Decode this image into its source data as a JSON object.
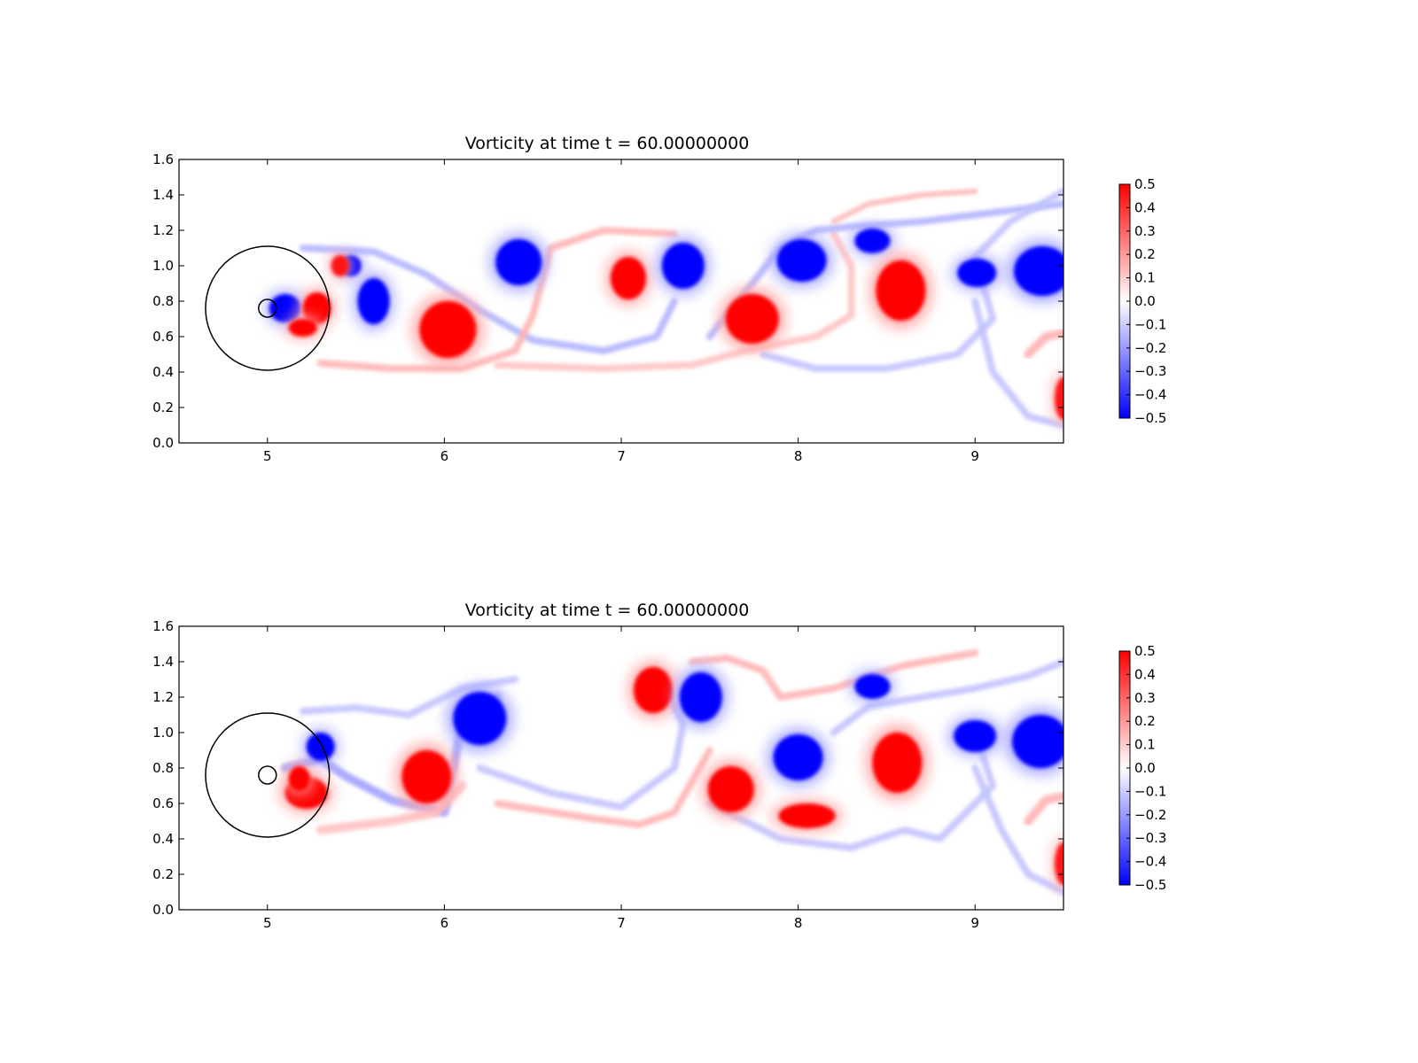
{
  "chart_data": [
    {
      "type": "heatmap",
      "title": "Vorticity at time t =    60.00000000",
      "xlabel": "",
      "ylabel": "",
      "xlim": [
        4.5,
        9.5
      ],
      "ylim": [
        0.0,
        1.6
      ],
      "x_ticks": [
        5,
        6,
        7,
        8,
        9
      ],
      "y_ticks": [
        0.0,
        0.2,
        0.4,
        0.6,
        0.8,
        1.0,
        1.2,
        1.4,
        1.6
      ],
      "grid": false,
      "colormap": "bwr",
      "colors": {
        "negative": "#0000ff",
        "zero": "#ffffff",
        "positive": "#ff0000"
      },
      "colorbar": {
        "range": [
          -0.5,
          0.5
        ],
        "ticks": [
          0.5,
          0.4,
          0.3,
          0.2,
          0.1,
          0.0,
          -0.1,
          -0.2,
          -0.3,
          -0.4,
          -0.5
        ],
        "tick_labels": [
          "0.5",
          "0.4",
          "0.3",
          "0.2",
          "0.1",
          "0.0",
          "−0.1",
          "−0.2",
          "−0.3",
          "−0.4",
          "−0.5"
        ]
      },
      "circles": [
        {
          "cx": 5.0,
          "cy": 0.76,
          "r": 0.35
        },
        {
          "cx": 5.0,
          "cy": 0.76,
          "r": 0.05
        }
      ],
      "vortices": [
        {
          "x": 6.02,
          "y": 0.64,
          "rx": 0.16,
          "ry": 0.16,
          "value": 0.5
        },
        {
          "x": 6.42,
          "y": 1.02,
          "rx": 0.13,
          "ry": 0.13,
          "value": -0.5
        },
        {
          "x": 7.04,
          "y": 0.93,
          "rx": 0.1,
          "ry": 0.12,
          "value": 0.5
        },
        {
          "x": 7.35,
          "y": 1.0,
          "rx": 0.12,
          "ry": 0.13,
          "value": -0.5
        },
        {
          "x": 7.74,
          "y": 0.7,
          "rx": 0.15,
          "ry": 0.14,
          "value": 0.5
        },
        {
          "x": 8.02,
          "y": 1.03,
          "rx": 0.14,
          "ry": 0.12,
          "value": -0.5
        },
        {
          "x": 8.42,
          "y": 1.14,
          "rx": 0.1,
          "ry": 0.07,
          "value": -0.5
        },
        {
          "x": 8.58,
          "y": 0.86,
          "rx": 0.14,
          "ry": 0.17,
          "value": 0.5
        },
        {
          "x": 9.01,
          "y": 0.96,
          "rx": 0.11,
          "ry": 0.08,
          "value": -0.5
        },
        {
          "x": 9.38,
          "y": 0.97,
          "rx": 0.16,
          "ry": 0.14,
          "value": -0.5
        },
        {
          "x": 5.1,
          "y": 0.76,
          "rx": 0.09,
          "ry": 0.08,
          "value": -0.5
        },
        {
          "x": 5.6,
          "y": 0.8,
          "rx": 0.09,
          "ry": 0.13,
          "value": -0.5
        },
        {
          "x": 5.47,
          "y": 1.0,
          "rx": 0.06,
          "ry": 0.06,
          "value": -0.5
        },
        {
          "x": 5.28,
          "y": 0.76,
          "rx": 0.08,
          "ry": 0.09,
          "value": 0.5
        },
        {
          "x": 5.2,
          "y": 0.65,
          "rx": 0.08,
          "ry": 0.05,
          "value": 0.5
        },
        {
          "x": 5.41,
          "y": 1.0,
          "rx": 0.05,
          "ry": 0.06,
          "value": 0.45
        },
        {
          "x": 9.5,
          "y": 0.25,
          "rx": 0.05,
          "ry": 0.12,
          "value": 0.45
        }
      ],
      "filaments": [
        {
          "points": [
            [
              5.2,
              1.1
            ],
            [
              5.6,
              1.08
            ],
            [
              5.9,
              0.95
            ],
            [
              6.2,
              0.75
            ],
            [
              6.5,
              0.58
            ],
            [
              6.9,
              0.52
            ],
            [
              7.2,
              0.6
            ],
            [
              7.3,
              0.8
            ]
          ],
          "value": -0.15,
          "width": 0.04
        },
        {
          "points": [
            [
              5.3,
              0.45
            ],
            [
              5.7,
              0.42
            ],
            [
              6.1,
              0.42
            ],
            [
              6.4,
              0.52
            ],
            [
              6.5,
              0.72
            ],
            [
              6.6,
              1.1
            ],
            [
              6.9,
              1.2
            ],
            [
              7.3,
              1.18
            ]
          ],
          "value": 0.15,
          "width": 0.04
        },
        {
          "points": [
            [
              6.3,
              0.44
            ],
            [
              6.9,
              0.42
            ],
            [
              7.4,
              0.44
            ],
            [
              7.7,
              0.52
            ],
            [
              8.1,
              0.6
            ],
            [
              8.3,
              0.72
            ],
            [
              8.3,
              1.0
            ],
            [
              8.2,
              1.18
            ]
          ],
          "value": 0.12,
          "width": 0.04
        },
        {
          "points": [
            [
              7.5,
              0.6
            ],
            [
              7.7,
              0.85
            ],
            [
              7.9,
              1.1
            ],
            [
              8.1,
              1.2
            ],
            [
              8.3,
              1.22
            ],
            [
              8.7,
              1.25
            ],
            [
              9.1,
              1.3
            ],
            [
              9.5,
              1.35
            ]
          ],
          "value": -0.15,
          "width": 0.04
        },
        {
          "points": [
            [
              7.8,
              0.5
            ],
            [
              8.1,
              0.42
            ],
            [
              8.5,
              0.42
            ],
            [
              8.9,
              0.5
            ],
            [
              9.1,
              0.7
            ],
            [
              9.0,
              1.05
            ],
            [
              9.2,
              1.25
            ],
            [
              9.5,
              1.42
            ]
          ],
          "value": -0.12,
          "width": 0.04
        },
        {
          "points": [
            [
              8.2,
              1.25
            ],
            [
              8.4,
              1.35
            ],
            [
              8.7,
              1.4
            ],
            [
              9.0,
              1.42
            ]
          ],
          "value": 0.15,
          "width": 0.03
        },
        {
          "points": [
            [
              9.0,
              0.8
            ],
            [
              9.1,
              0.4
            ],
            [
              9.3,
              0.15
            ],
            [
              9.5,
              0.1
            ]
          ],
          "value": -0.12,
          "width": 0.04
        },
        {
          "points": [
            [
              9.3,
              0.5
            ],
            [
              9.4,
              0.6
            ],
            [
              9.5,
              0.62
            ]
          ],
          "value": 0.15,
          "width": 0.05
        }
      ]
    },
    {
      "type": "heatmap",
      "title": "Vorticity at time t =    60.00000000",
      "xlabel": "",
      "ylabel": "",
      "xlim": [
        4.5,
        9.5
      ],
      "ylim": [
        0.0,
        1.6
      ],
      "x_ticks": [
        5,
        6,
        7,
        8,
        9
      ],
      "y_ticks": [
        0.0,
        0.2,
        0.4,
        0.6,
        0.8,
        1.0,
        1.2,
        1.4,
        1.6
      ],
      "grid": false,
      "colormap": "bwr",
      "colors": {
        "negative": "#0000ff",
        "zero": "#ffffff",
        "positive": "#ff0000"
      },
      "colorbar": {
        "range": [
          -0.5,
          0.5
        ],
        "ticks": [
          0.5,
          0.4,
          0.3,
          0.2,
          0.1,
          0.0,
          -0.1,
          -0.2,
          -0.3,
          -0.4,
          -0.5
        ],
        "tick_labels": [
          "0.5",
          "0.4",
          "0.3",
          "0.2",
          "0.1",
          "0.0",
          "−0.1",
          "−0.2",
          "−0.3",
          "−0.4",
          "−0.5"
        ]
      },
      "circles": [
        {
          "cx": 5.0,
          "cy": 0.76,
          "r": 0.35
        },
        {
          "cx": 5.0,
          "cy": 0.76,
          "r": 0.05
        }
      ],
      "vortices": [
        {
          "x": 5.9,
          "y": 0.75,
          "rx": 0.14,
          "ry": 0.15,
          "value": 0.5
        },
        {
          "x": 6.2,
          "y": 1.08,
          "rx": 0.15,
          "ry": 0.15,
          "value": -0.5
        },
        {
          "x": 7.18,
          "y": 1.24,
          "rx": 0.11,
          "ry": 0.13,
          "value": 0.5
        },
        {
          "x": 7.45,
          "y": 1.2,
          "rx": 0.12,
          "ry": 0.14,
          "value": -0.5
        },
        {
          "x": 7.62,
          "y": 0.68,
          "rx": 0.13,
          "ry": 0.13,
          "value": 0.5
        },
        {
          "x": 8.0,
          "y": 0.86,
          "rx": 0.14,
          "ry": 0.13,
          "value": -0.5
        },
        {
          "x": 8.05,
          "y": 0.53,
          "rx": 0.16,
          "ry": 0.07,
          "value": 0.5
        },
        {
          "x": 8.42,
          "y": 1.26,
          "rx": 0.1,
          "ry": 0.07,
          "value": -0.5
        },
        {
          "x": 8.56,
          "y": 0.83,
          "rx": 0.14,
          "ry": 0.17,
          "value": 0.5
        },
        {
          "x": 9.0,
          "y": 0.98,
          "rx": 0.12,
          "ry": 0.09,
          "value": -0.5
        },
        {
          "x": 9.37,
          "y": 0.95,
          "rx": 0.16,
          "ry": 0.15,
          "value": -0.5
        },
        {
          "x": 5.3,
          "y": 0.92,
          "rx": 0.08,
          "ry": 0.08,
          "value": -0.5
        },
        {
          "x": 5.22,
          "y": 0.66,
          "rx": 0.12,
          "ry": 0.09,
          "value": 0.5
        },
        {
          "x": 5.18,
          "y": 0.74,
          "rx": 0.06,
          "ry": 0.07,
          "value": 0.5
        },
        {
          "x": 9.5,
          "y": 0.26,
          "rx": 0.05,
          "ry": 0.12,
          "value": 0.45
        }
      ],
      "filaments": [
        {
          "points": [
            [
              5.1,
              0.8
            ],
            [
              5.3,
              0.85
            ],
            [
              5.45,
              0.75
            ],
            [
              5.7,
              0.62
            ],
            [
              6.0,
              0.55
            ],
            [
              6.05,
              0.8
            ],
            [
              6.1,
              1.05
            ],
            [
              6.3,
              1.2
            ]
          ],
          "value": -0.18,
          "width": 0.05
        },
        {
          "points": [
            [
              5.2,
              1.12
            ],
            [
              5.5,
              1.14
            ],
            [
              5.8,
              1.1
            ],
            [
              6.1,
              1.25
            ],
            [
              6.4,
              1.3
            ]
          ],
          "value": -0.12,
          "width": 0.04
        },
        {
          "points": [
            [
              5.3,
              0.45
            ],
            [
              5.7,
              0.5
            ],
            [
              5.95,
              0.55
            ],
            [
              6.1,
              0.7
            ]
          ],
          "value": 0.12,
          "width": 0.05
        },
        {
          "points": [
            [
              6.2,
              0.8
            ],
            [
              6.6,
              0.66
            ],
            [
              7.0,
              0.58
            ],
            [
              7.3,
              0.8
            ],
            [
              7.35,
              1.05
            ],
            [
              7.2,
              1.35
            ]
          ],
          "value": -0.12,
          "width": 0.04
        },
        {
          "points": [
            [
              6.3,
              0.6
            ],
            [
              6.8,
              0.52
            ],
            [
              7.1,
              0.48
            ],
            [
              7.3,
              0.55
            ],
            [
              7.5,
              0.9
            ]
          ],
          "value": 0.15,
          "width": 0.04
        },
        {
          "points": [
            [
              7.4,
              1.4
            ],
            [
              7.6,
              1.42
            ],
            [
              7.8,
              1.35
            ],
            [
              7.9,
              1.2
            ],
            [
              8.2,
              1.25
            ],
            [
              8.6,
              1.38
            ],
            [
              9.0,
              1.45
            ]
          ],
          "value": 0.15,
          "width": 0.04
        },
        {
          "points": [
            [
              7.5,
              0.6
            ],
            [
              7.9,
              0.4
            ],
            [
              8.3,
              0.35
            ],
            [
              8.6,
              0.45
            ],
            [
              8.8,
              0.4
            ],
            [
              9.1,
              0.7
            ],
            [
              9.0,
              1.0
            ]
          ],
          "value": -0.12,
          "width": 0.04
        },
        {
          "points": [
            [
              8.2,
              1.0
            ],
            [
              8.4,
              1.15
            ],
            [
              8.7,
              1.2
            ],
            [
              9.0,
              1.25
            ],
            [
              9.3,
              1.32
            ],
            [
              9.5,
              1.4
            ]
          ],
          "value": -0.12,
          "width": 0.04
        },
        {
          "points": [
            [
              9.0,
              0.8
            ],
            [
              9.15,
              0.45
            ],
            [
              9.3,
              0.2
            ],
            [
              9.5,
              0.1
            ]
          ],
          "value": -0.12,
          "width": 0.04
        },
        {
          "points": [
            [
              9.3,
              0.5
            ],
            [
              9.4,
              0.62
            ],
            [
              9.5,
              0.64
            ]
          ],
          "value": 0.15,
          "width": 0.05
        }
      ]
    }
  ]
}
